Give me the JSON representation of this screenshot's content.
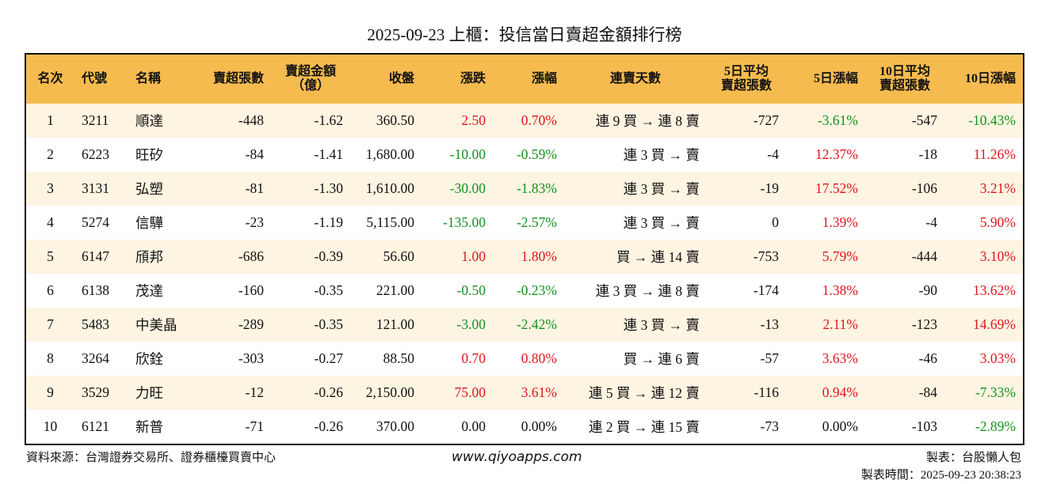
{
  "title": "2025-09-23 上櫃：投信當日賣超金額排行榜",
  "table": {
    "header": [
      "名次",
      "代號",
      "名稱",
      "賣超張數",
      "賣超金額\n（億）",
      "收盤",
      "漲跌",
      "漲幅",
      "連賣天數",
      "5日平均\n賣超張數",
      "5日漲幅",
      "10日平均\n賣超張數",
      "10日漲幅"
    ],
    "rows": [
      [
        "1",
        "3211",
        "順達",
        "-448",
        "-1.62",
        "360.50",
        "2.50",
        "0.70%",
        "連 9 買 → 連 8 賣",
        "-727",
        "-3.61%",
        "-547",
        "-10.43%"
      ],
      [
        "2",
        "6223",
        "旺矽",
        "-84",
        "-1.41",
        "1,680.00",
        "-10.00",
        "-0.59%",
        "連 3 買 → 賣",
        "-4",
        "12.37%",
        "-18",
        "11.26%"
      ],
      [
        "3",
        "3131",
        "弘塑",
        "-81",
        "-1.30",
        "1,610.00",
        "-30.00",
        "-1.83%",
        "連 3 買 → 賣",
        "-19",
        "17.52%",
        "-106",
        "3.21%"
      ],
      [
        "4",
        "5274",
        "信驊",
        "-23",
        "-1.19",
        "5,115.00",
        "-135.00",
        "-2.57%",
        "連 3 買 → 賣",
        "0",
        "1.39%",
        "-4",
        "5.90%"
      ],
      [
        "5",
        "6147",
        "頎邦",
        "-686",
        "-0.39",
        "56.60",
        "1.00",
        "1.80%",
        "買 → 連 14 賣",
        "-753",
        "5.79%",
        "-444",
        "3.10%"
      ],
      [
        "6",
        "6138",
        "茂達",
        "-160",
        "-0.35",
        "221.00",
        "-0.50",
        "-0.23%",
        "連 3 買 → 連 8 賣",
        "-174",
        "1.38%",
        "-90",
        "13.62%"
      ],
      [
        "7",
        "5483",
        "中美晶",
        "-289",
        "-0.35",
        "121.00",
        "-3.00",
        "-2.42%",
        "連 3 買 → 賣",
        "-13",
        "2.11%",
        "-123",
        "14.69%"
      ],
      [
        "8",
        "3264",
        "欣銓",
        "-303",
        "-0.27",
        "88.50",
        "0.70",
        "0.80%",
        "買 → 連 6 賣",
        "-57",
        "3.63%",
        "-46",
        "3.03%"
      ],
      [
        "9",
        "3529",
        "力旺",
        "-12",
        "-0.26",
        "2,150.00",
        "75.00",
        "3.61%",
        "連 5 買 → 連 12 賣",
        "-116",
        "0.94%",
        "-84",
        "-7.33%"
      ],
      [
        "10",
        "6121",
        "新普",
        "-71",
        "-0.26",
        "370.00",
        "0.00",
        "0.00%",
        "連 2 買 → 連 15 賣",
        "-73",
        "0.00%",
        "-103",
        "-2.89%"
      ]
    ]
  },
  "footer": {
    "source": "資料來源：台灣證券交易所、證券櫃檯買賣中心",
    "website": "www.qiyoapps.com",
    "author": "製表：台股懶人包",
    "time": "製表時間：2025-09-23 20:38:23"
  }
}
